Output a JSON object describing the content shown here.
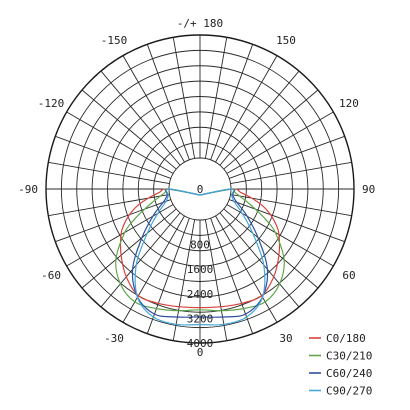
{
  "chart_data": {
    "type": "polar-luminous-intensity",
    "angle_labels": [
      {
        "angle": 180,
        "text": "-/+ 180"
      },
      {
        "angle": 150,
        "text": "150"
      },
      {
        "angle": -150,
        "text": "-150"
      },
      {
        "angle": 120,
        "text": "120"
      },
      {
        "angle": -120,
        "text": "-120"
      },
      {
        "angle": 90,
        "text": "90"
      },
      {
        "angle": -90,
        "text": "-90"
      },
      {
        "angle": 60,
        "text": "60"
      },
      {
        "angle": -60,
        "text": "-60"
      },
      {
        "angle": 30,
        "text": "30"
      },
      {
        "angle": -30,
        "text": "-30"
      },
      {
        "angle": 0,
        "text": "0"
      }
    ],
    "radial_ticks": [
      0,
      800,
      1600,
      2400,
      3200,
      4000
    ],
    "radial_max": 4000,
    "radial_circles": 8,
    "angle_step": 10,
    "series": [
      {
        "name": "C0/180",
        "color": "#d9413b",
        "values": [
          [
            0,
            2850
          ],
          [
            10,
            2880
          ],
          [
            20,
            2950
          ],
          [
            30,
            3000
          ],
          [
            40,
            2720
          ],
          [
            50,
            2340
          ],
          [
            60,
            1960
          ],
          [
            65,
            1720
          ],
          [
            70,
            1430
          ],
          [
            75,
            1100
          ],
          [
            80,
            700
          ],
          [
            85,
            330
          ],
          [
            90,
            60
          ]
        ]
      },
      {
        "name": "C30/210",
        "color": "#5fa84a",
        "values": [
          [
            0,
            2920
          ],
          [
            10,
            3010
          ],
          [
            20,
            3130
          ],
          [
            30,
            3230
          ],
          [
            40,
            3020
          ],
          [
            50,
            2560
          ],
          [
            60,
            1820
          ],
          [
            65,
            1360
          ],
          [
            70,
            910
          ],
          [
            75,
            560
          ],
          [
            80,
            300
          ],
          [
            85,
            120
          ],
          [
            90,
            30
          ]
        ]
      },
      {
        "name": "C60/240",
        "color": "#2f4fa0",
        "values": [
          [
            0,
            3150
          ],
          [
            10,
            3220
          ],
          [
            20,
            3320
          ],
          [
            30,
            3050
          ],
          [
            40,
            2400
          ],
          [
            50,
            1460
          ],
          [
            60,
            760
          ],
          [
            65,
            480
          ],
          [
            70,
            270
          ],
          [
            75,
            140
          ],
          [
            80,
            70
          ],
          [
            90,
            20
          ]
        ]
      },
      {
        "name": "C90/270",
        "color": "#45a8d4",
        "values": [
          [
            0,
            3400
          ],
          [
            10,
            3460
          ],
          [
            20,
            3420
          ],
          [
            30,
            3060
          ],
          [
            40,
            2220
          ],
          [
            50,
            1230
          ],
          [
            60,
            580
          ],
          [
            65,
            330
          ],
          [
            70,
            170
          ],
          [
            75,
            80
          ],
          [
            80,
            40
          ],
          [
            90,
            10
          ]
        ]
      }
    ]
  }
}
